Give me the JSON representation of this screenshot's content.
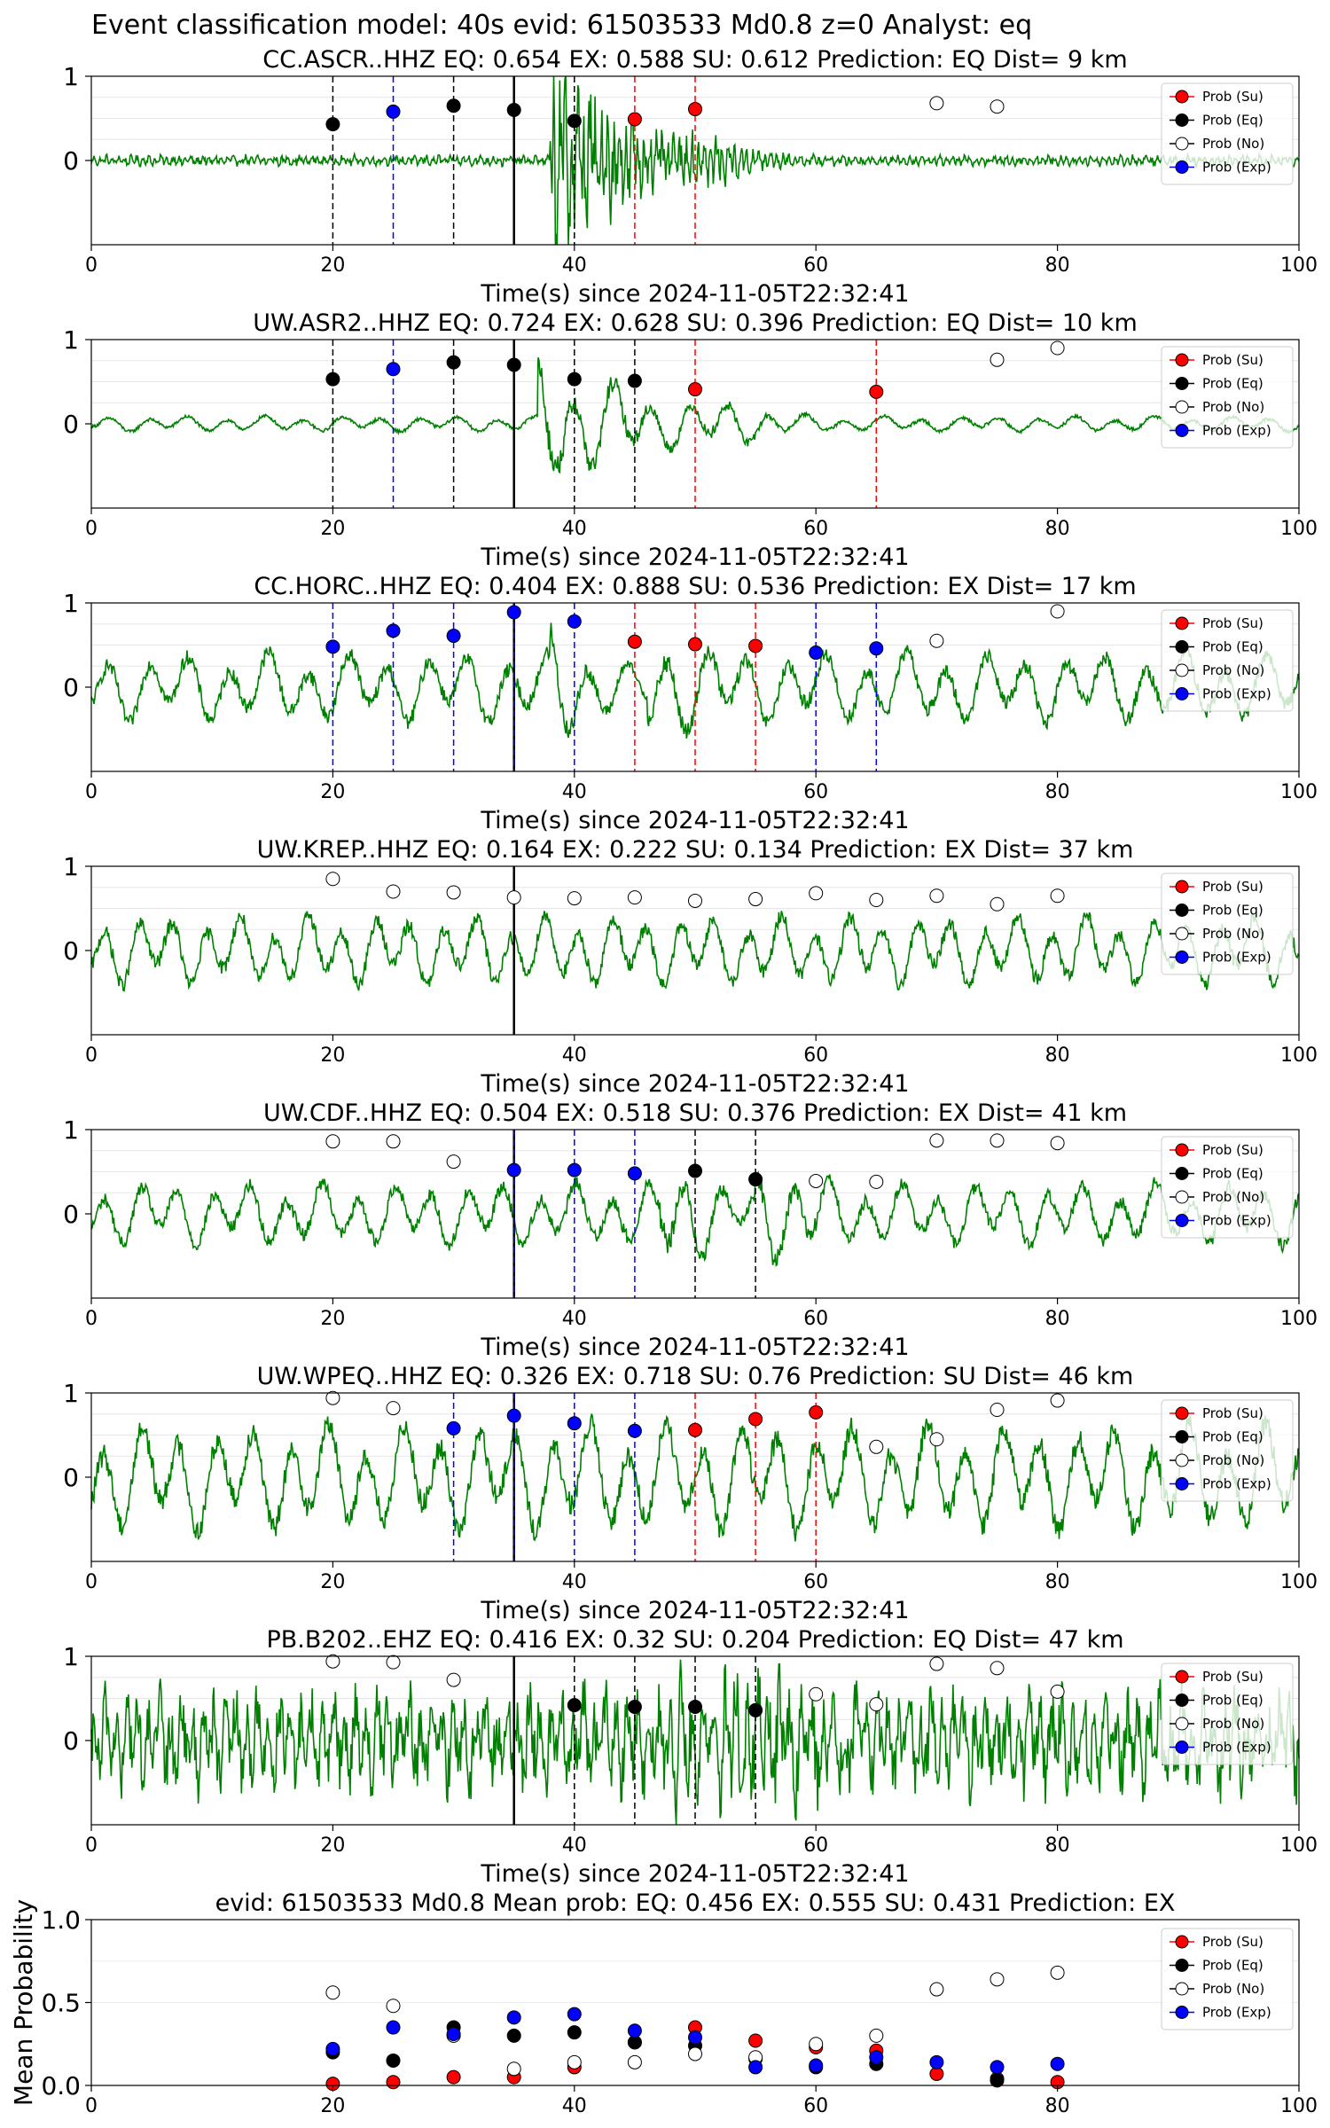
{
  "figure": {
    "suptitle": "Event classification model: 40s evid: 61503533 Md0.8 z=0 Analyst: eq",
    "xlabel": "Time(s) since 2024-11-05T22:32:41"
  },
  "legend": [
    {
      "label": "Prob (Su)",
      "color": "#ff0000",
      "fill": "#ff0000"
    },
    {
      "label": "Prob (Eq)",
      "color": "#000000",
      "fill": "#000000"
    },
    {
      "label": "Prob (No)",
      "color": "#000000",
      "fill": "#ffffff"
    },
    {
      "label": "Prob (Exp)",
      "color": "#0000ff",
      "fill": "#0000ff"
    }
  ],
  "colors": {
    "waveform": "#008000",
    "su": "#ff0000",
    "eq": "#000000",
    "no": "#ffffff",
    "exp": "#0000ff",
    "su_line": "#ff0000",
    "eq_line": "#000000",
    "exp_line": "#0000ff"
  },
  "chart_data": [
    {
      "type": "line",
      "title": "CC.ASCR..HHZ   EQ: 0.654  EX: 0.588  SU: 0.612   Prediction: EQ    Dist= 9 km",
      "xlim": [
        0,
        100
      ],
      "ylim": [
        -1,
        1
      ],
      "xticks": [
        "0",
        "20",
        "40",
        "60",
        "80",
        "100"
      ],
      "yticks": [
        "0",
        "1"
      ],
      "pick_time": 35,
      "waveform": {
        "color": "#008000",
        "description": "normalized seismogram",
        "quiet_amp": 0.05,
        "onset": 38,
        "peak_amp": 0.95,
        "coda_end": 48,
        "period": 0.5
      },
      "points": [
        {
          "x": 20,
          "y": 0.43,
          "class": "eq"
        },
        {
          "x": 25,
          "y": 0.58,
          "class": "exp"
        },
        {
          "x": 30,
          "y": 0.65,
          "class": "eq"
        },
        {
          "x": 35,
          "y": 0.6,
          "class": "eq"
        },
        {
          "x": 40,
          "y": 0.47,
          "class": "eq"
        },
        {
          "x": 45,
          "y": 0.49,
          "class": "su"
        },
        {
          "x": 50,
          "y": 0.61,
          "class": "su"
        },
        {
          "x": 70,
          "y": 0.68,
          "class": "no"
        },
        {
          "x": 75,
          "y": 0.64,
          "class": "no"
        }
      ]
    },
    {
      "type": "line",
      "title": "UW.ASR2..HHZ   EQ: 0.724  EX: 0.628  SU: 0.396   Prediction: EQ    Dist= 10 km",
      "xlim": [
        0,
        100
      ],
      "ylim": [
        -1,
        1
      ],
      "xticks": [
        "0",
        "20",
        "40",
        "60",
        "80",
        "100"
      ],
      "yticks": [
        "0",
        "1"
      ],
      "pick_time": 35,
      "waveform": {
        "color": "#008000",
        "quiet_amp": 0.1,
        "onset": 37,
        "peak_amp": 0.9,
        "coda_end": 50,
        "period": 3.2
      },
      "points": [
        {
          "x": 20,
          "y": 0.53,
          "class": "eq"
        },
        {
          "x": 25,
          "y": 0.65,
          "class": "exp"
        },
        {
          "x": 30,
          "y": 0.73,
          "class": "eq"
        },
        {
          "x": 35,
          "y": 0.7,
          "class": "eq"
        },
        {
          "x": 40,
          "y": 0.53,
          "class": "eq"
        },
        {
          "x": 45,
          "y": 0.51,
          "class": "eq"
        },
        {
          "x": 50,
          "y": 0.41,
          "class": "su"
        },
        {
          "x": 65,
          "y": 0.38,
          "class": "su"
        },
        {
          "x": 75,
          "y": 0.76,
          "class": "no"
        },
        {
          "x": 80,
          "y": 0.9,
          "class": "no"
        }
      ]
    },
    {
      "type": "line",
      "title": "CC.HORC..HHZ   EQ: 0.404  EX: 0.888  SU: 0.536   Prediction: EX    Dist= 17 km",
      "xlim": [
        0,
        100
      ],
      "ylim": [
        -1,
        1
      ],
      "xticks": [
        "0",
        "20",
        "40",
        "60",
        "80",
        "100"
      ],
      "yticks": [
        "0",
        "1"
      ],
      "pick_time": 35,
      "waveform": {
        "color": "#008000",
        "quiet_amp": 0.45,
        "onset": 38,
        "peak_amp": 0.8,
        "coda_end": 46,
        "period": 3.3
      },
      "points": [
        {
          "x": 20,
          "y": 0.48,
          "class": "exp"
        },
        {
          "x": 25,
          "y": 0.67,
          "class": "exp"
        },
        {
          "x": 30,
          "y": 0.61,
          "class": "exp"
        },
        {
          "x": 35,
          "y": 0.89,
          "class": "exp"
        },
        {
          "x": 40,
          "y": 0.78,
          "class": "exp"
        },
        {
          "x": 45,
          "y": 0.54,
          "class": "su"
        },
        {
          "x": 50,
          "y": 0.51,
          "class": "su"
        },
        {
          "x": 55,
          "y": 0.49,
          "class": "su"
        },
        {
          "x": 60,
          "y": 0.41,
          "class": "exp"
        },
        {
          "x": 65,
          "y": 0.46,
          "class": "exp"
        },
        {
          "x": 70,
          "y": 0.55,
          "class": "no"
        },
        {
          "x": 80,
          "y": 0.9,
          "class": "no"
        }
      ]
    },
    {
      "type": "line",
      "title": "UW.KREP..HHZ   EQ: 0.164  EX: 0.222  SU: 0.134   Prediction: EX    Dist= 37 km",
      "xlim": [
        0,
        100
      ],
      "ylim": [
        -1,
        1
      ],
      "xticks": [
        "0",
        "20",
        "40",
        "60",
        "80",
        "100"
      ],
      "yticks": [
        "0",
        "1"
      ],
      "pick_time": 35,
      "waveform": {
        "color": "#008000",
        "quiet_amp": 0.45,
        "onset": 100,
        "peak_amp": 0.5,
        "coda_end": 100,
        "period": 2.8
      },
      "points": [
        {
          "x": 20,
          "y": 0.85,
          "class": "no"
        },
        {
          "x": 25,
          "y": 0.7,
          "class": "no"
        },
        {
          "x": 30,
          "y": 0.69,
          "class": "no"
        },
        {
          "x": 35,
          "y": 0.63,
          "class": "no"
        },
        {
          "x": 40,
          "y": 0.62,
          "class": "no"
        },
        {
          "x": 45,
          "y": 0.63,
          "class": "no"
        },
        {
          "x": 50,
          "y": 0.59,
          "class": "no"
        },
        {
          "x": 55,
          "y": 0.61,
          "class": "no"
        },
        {
          "x": 60,
          "y": 0.68,
          "class": "no"
        },
        {
          "x": 65,
          "y": 0.6,
          "class": "no"
        },
        {
          "x": 70,
          "y": 0.65,
          "class": "no"
        },
        {
          "x": 75,
          "y": 0.55,
          "class": "no"
        },
        {
          "x": 80,
          "y": 0.65,
          "class": "no"
        }
      ]
    },
    {
      "type": "line",
      "title": "UW.CDF..HHZ   EQ: 0.504  EX: 0.518  SU: 0.376   Prediction: EX    Dist= 41 km",
      "xlim": [
        0,
        100
      ],
      "ylim": [
        -1,
        1
      ],
      "xticks": [
        "0",
        "20",
        "40",
        "60",
        "80",
        "100"
      ],
      "yticks": [
        "0",
        "1"
      ],
      "pick_time": 35,
      "waveform": {
        "color": "#008000",
        "quiet_amp": 0.4,
        "onset": 47,
        "peak_amp": 0.85,
        "coda_end": 55,
        "period": 3.0
      },
      "points": [
        {
          "x": 20,
          "y": 0.86,
          "class": "no"
        },
        {
          "x": 25,
          "y": 0.86,
          "class": "no"
        },
        {
          "x": 30,
          "y": 0.62,
          "class": "no"
        },
        {
          "x": 35,
          "y": 0.52,
          "class": "exp"
        },
        {
          "x": 40,
          "y": 0.52,
          "class": "exp"
        },
        {
          "x": 45,
          "y": 0.48,
          "class": "exp"
        },
        {
          "x": 50,
          "y": 0.51,
          "class": "eq"
        },
        {
          "x": 55,
          "y": 0.41,
          "class": "eq"
        },
        {
          "x": 60,
          "y": 0.39,
          "class": "no"
        },
        {
          "x": 65,
          "y": 0.38,
          "class": "no"
        },
        {
          "x": 70,
          "y": 0.87,
          "class": "no"
        },
        {
          "x": 75,
          "y": 0.87,
          "class": "no"
        },
        {
          "x": 80,
          "y": 0.84,
          "class": "no"
        }
      ]
    },
    {
      "type": "line",
      "title": "UW.WPEQ..HHZ   EQ: 0.326  EX: 0.718  SU: 0.76   Prediction: SU    Dist= 46 km",
      "xlim": [
        0,
        100
      ],
      "ylim": [
        -1,
        1
      ],
      "xticks": [
        "0",
        "20",
        "40",
        "60",
        "80",
        "100"
      ],
      "yticks": [
        "0",
        "1"
      ],
      "pick_time": 35,
      "waveform": {
        "color": "#008000",
        "quiet_amp": 0.7,
        "onset": 100,
        "peak_amp": 0.7,
        "coda_end": 100,
        "period": 3.1
      },
      "points": [
        {
          "x": 20,
          "y": 0.94,
          "class": "no"
        },
        {
          "x": 25,
          "y": 0.82,
          "class": "no"
        },
        {
          "x": 30,
          "y": 0.58,
          "class": "exp"
        },
        {
          "x": 35,
          "y": 0.73,
          "class": "exp"
        },
        {
          "x": 40,
          "y": 0.64,
          "class": "exp"
        },
        {
          "x": 45,
          "y": 0.55,
          "class": "exp"
        },
        {
          "x": 50,
          "y": 0.56,
          "class": "su"
        },
        {
          "x": 55,
          "y": 0.69,
          "class": "su"
        },
        {
          "x": 60,
          "y": 0.77,
          "class": "su"
        },
        {
          "x": 65,
          "y": 0.36,
          "class": "no"
        },
        {
          "x": 70,
          "y": 0.45,
          "class": "no"
        },
        {
          "x": 75,
          "y": 0.8,
          "class": "no"
        },
        {
          "x": 80,
          "y": 0.91,
          "class": "no"
        }
      ]
    },
    {
      "type": "line",
      "title": "PB.B202..EHZ   EQ: 0.416  EX: 0.32  SU: 0.204   Prediction: EQ    Dist= 47 km",
      "xlim": [
        0,
        100
      ],
      "ylim": [
        -1,
        1
      ],
      "xticks": [
        "0",
        "20",
        "40",
        "60",
        "80",
        "100"
      ],
      "yticks": [
        "0",
        "1"
      ],
      "pick_time": 35,
      "waveform": {
        "color": "#008000",
        "quiet_amp": 0.5,
        "onset": 48,
        "peak_amp": 0.9,
        "coda_end": 52,
        "period": 0.9
      },
      "points": [
        {
          "x": 20,
          "y": 0.94,
          "class": "no"
        },
        {
          "x": 25,
          "y": 0.93,
          "class": "no"
        },
        {
          "x": 30,
          "y": 0.72,
          "class": "no"
        },
        {
          "x": 40,
          "y": 0.42,
          "class": "eq"
        },
        {
          "x": 45,
          "y": 0.4,
          "class": "eq"
        },
        {
          "x": 50,
          "y": 0.4,
          "class": "eq"
        },
        {
          "x": 55,
          "y": 0.36,
          "class": "eq"
        },
        {
          "x": 60,
          "y": 0.55,
          "class": "no"
        },
        {
          "x": 65,
          "y": 0.43,
          "class": "no"
        },
        {
          "x": 70,
          "y": 0.91,
          "class": "no"
        },
        {
          "x": 75,
          "y": 0.86,
          "class": "no"
        },
        {
          "x": 80,
          "y": 0.58,
          "class": "no"
        }
      ]
    },
    {
      "type": "scatter",
      "title": "evid: 61503533  Md0.8   Mean prob:   EQ: 0.456  EX: 0.555  SU: 0.431   Prediction: EX",
      "ylabel": "Mean Probability",
      "xlim": [
        0,
        100
      ],
      "ylim": [
        0,
        1
      ],
      "xticks": [
        "0",
        "20",
        "40",
        "60",
        "80",
        "100"
      ],
      "yticks": [
        "0.0",
        "0.5",
        "1.0"
      ],
      "x": [
        20,
        25,
        30,
        35,
        40,
        45,
        50,
        55,
        60,
        65,
        70,
        75,
        80
      ],
      "series": [
        {
          "name": "Prob (Su)",
          "class": "su",
          "values": [
            0.01,
            0.02,
            0.05,
            0.05,
            0.11,
            0.26,
            0.35,
            0.27,
            0.23,
            0.21,
            0.07,
            0.04,
            0.02
          ]
        },
        {
          "name": "Prob (Eq)",
          "class": "eq",
          "values": [
            0.2,
            0.15,
            0.35,
            0.3,
            0.32,
            0.26,
            0.24,
            0.16,
            0.11,
            0.13,
            null,
            0.03,
            null
          ]
        },
        {
          "name": "Prob (No)",
          "class": "no",
          "values": [
            0.56,
            0.48,
            0.3,
            0.1,
            0.14,
            0.14,
            0.19,
            0.17,
            0.25,
            0.3,
            0.58,
            0.64,
            0.68
          ]
        },
        {
          "name": "Prob (Exp)",
          "class": "exp",
          "values": [
            0.22,
            0.35,
            0.31,
            0.41,
            0.43,
            0.33,
            0.29,
            0.11,
            0.12,
            0.17,
            0.14,
            0.11,
            0.13
          ]
        }
      ]
    }
  ]
}
